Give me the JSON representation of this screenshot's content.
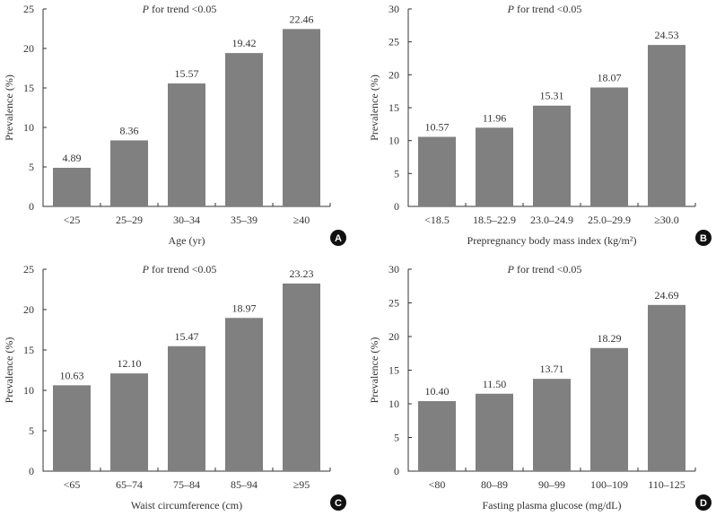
{
  "chart_data": [
    {
      "panel": "A",
      "type": "bar",
      "annotation": "P for trend <0.05",
      "xlabel": "Age (yr)",
      "ylabel": "Prevalence (%)",
      "categories": [
        "<25",
        "25–29",
        "30–34",
        "35–39",
        "≥40"
      ],
      "values": [
        4.89,
        8.36,
        15.57,
        19.42,
        22.46
      ],
      "value_labels": [
        "4.89",
        "8.36",
        "15.57",
        "19.42",
        "22.46"
      ],
      "ylim": [
        0,
        25
      ],
      "yticks": [
        0,
        5,
        10,
        15,
        20,
        25
      ]
    },
    {
      "panel": "B",
      "type": "bar",
      "annotation": "P for trend <0.05",
      "xlabel": "Prepregnancy body mass index (kg/m²)",
      "ylabel": "Prevalence (%)",
      "categories": [
        "<18.5",
        "18.5–22.9",
        "23.0–24.9",
        "25.0–29.9",
        "≥30.0"
      ],
      "values": [
        10.57,
        11.96,
        15.31,
        18.07,
        24.53
      ],
      "value_labels": [
        "10.57",
        "11.96",
        "15.31",
        "18.07",
        "24.53"
      ],
      "ylim": [
        0,
        30
      ],
      "yticks": [
        0,
        5,
        10,
        15,
        20,
        25,
        30
      ]
    },
    {
      "panel": "C",
      "type": "bar",
      "annotation": "P for trend <0.05",
      "xlabel": "Waist circumference (cm)",
      "ylabel": "Prevalence (%)",
      "categories": [
        "<65",
        "65–74",
        "75–84",
        "85–94",
        "≥95"
      ],
      "values": [
        10.63,
        12.1,
        15.47,
        18.97,
        23.23
      ],
      "value_labels": [
        "10.63",
        "12.10",
        "15.47",
        "18.97",
        "23.23"
      ],
      "ylim": [
        0,
        25
      ],
      "yticks": [
        0,
        5,
        10,
        15,
        20,
        25
      ]
    },
    {
      "panel": "D",
      "type": "bar",
      "annotation": "P for trend <0.05",
      "xlabel": "Fasting plasma glucose (mg/dL)",
      "ylabel": "Prevalence (%)",
      "categories": [
        "<80",
        "80–89",
        "90–99",
        "100–109",
        "110–125"
      ],
      "values": [
        10.4,
        11.5,
        13.71,
        18.29,
        24.69
      ],
      "value_labels": [
        "10.40",
        "11.50",
        "13.71",
        "18.29",
        "24.69"
      ],
      "ylim": [
        0,
        30
      ],
      "yticks": [
        0,
        5,
        10,
        15,
        20,
        25,
        30
      ]
    }
  ],
  "colors": {
    "bar": "#808080",
    "badge": "#111111"
  }
}
